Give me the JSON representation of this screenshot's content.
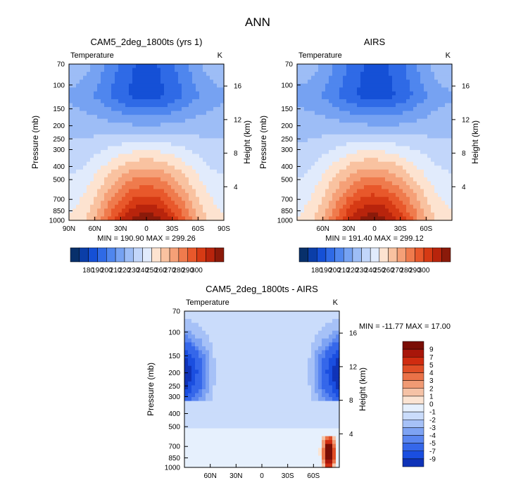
{
  "title": "ANN",
  "units_label": "K",
  "field_label": "Temperature",
  "panels": [
    {
      "id": "model",
      "title": "CAM5_2deg_1800ts (yrs 1)",
      "min_label": "MIN = 190.90",
      "max_label": "MAX = 299.26"
    },
    {
      "id": "obs",
      "title": "AIRS",
      "min_label": "MIN = 191.40",
      "max_label": "MAX = 299.12"
    },
    {
      "id": "diff",
      "title": "CAM5_2deg_1800ts - AIRS",
      "min_label": "MIN = -11.77",
      "max_label": "MAX =  17.00"
    }
  ],
  "colors": {
    "abs_scale": [
      "#08306b",
      "#0b3ea8",
      "#1550d6",
      "#2f6ae6",
      "#4f86ee",
      "#76a2f2",
      "#9dbdf6",
      "#c2d6fa",
      "#e1ebfc",
      "#fde3d0",
      "#f9c2a0",
      "#f5a077",
      "#ef7b4d",
      "#e8582b",
      "#d63a14",
      "#b8240c",
      "#8b1a0a"
    ],
    "diff_scale": [
      "#0a1f7a",
      "#0f33b8",
      "#1a4ee0",
      "#3567ea",
      "#5a86f0",
      "#7ea3f3",
      "#a6c1f7",
      "#cadcfb",
      "#e6f0fd",
      "#fbe4d3",
      "#f5c2a6",
      "#f09a74",
      "#ea7248",
      "#e04e26",
      "#d02c10",
      "#a8160a",
      "#7a0d05"
    ]
  },
  "chart_data": [
    {
      "type": "heatmap",
      "title": "CAM5_2deg_1800ts (yrs 1)",
      "subtitle": "Temperature",
      "xlabel": "",
      "ylabel": "Pressure (mb)",
      "y2label": "Height (km)",
      "x_ticks": [
        "90N",
        "60N",
        "30N",
        "0",
        "30S",
        "60S",
        "90S"
      ],
      "x_range": [
        90,
        -90
      ],
      "y_ticks": [
        70,
        100,
        150,
        200,
        250,
        300,
        400,
        500,
        700,
        850,
        1000
      ],
      "y_range": [
        70,
        1000
      ],
      "y_scale": "log",
      "y2_ticks": [
        4,
        8,
        12,
        16
      ],
      "units": "K",
      "min": 190.9,
      "max": 299.26
    },
    {
      "type": "heatmap",
      "title": "AIRS",
      "subtitle": "Temperature",
      "xlabel": "",
      "ylabel": "Pressure (mb)",
      "y2label": "Height (km)",
      "x_ticks": [
        "60N",
        "30N",
        "0",
        "30S",
        "60S"
      ],
      "x_range": [
        90,
        -90
      ],
      "y_ticks": [
        70,
        100,
        150,
        200,
        250,
        300,
        400,
        500,
        700,
        850,
        1000
      ],
      "y_range": [
        70,
        1000
      ],
      "y_scale": "log",
      "y2_ticks": [
        4,
        8,
        12,
        16
      ],
      "units": "K",
      "min": 191.4,
      "max": 299.12
    },
    {
      "type": "heatmap",
      "title": "CAM5_2deg_1800ts - AIRS",
      "subtitle": "Temperature",
      "xlabel": "",
      "ylabel": "Pressure (mb)",
      "y2label": "Height (km)",
      "x_ticks": [
        "60N",
        "30N",
        "0",
        "30S",
        "60S"
      ],
      "x_range": [
        90,
        -90
      ],
      "y_ticks": [
        70,
        100,
        150,
        200,
        250,
        300,
        400,
        500,
        700,
        850,
        1000
      ],
      "y_range": [
        70,
        1000
      ],
      "y_scale": "log",
      "y2_ticks": [
        4,
        8,
        12,
        16
      ],
      "units": "K",
      "min": -11.77,
      "max": 17.0
    }
  ],
  "colorbar_abs": {
    "labels": [
      "180",
      "190",
      "200",
      "210",
      "220",
      "230",
      "240",
      "250",
      "260",
      "270",
      "280",
      "290",
      "300"
    ]
  },
  "colorbar_diff": {
    "labels": [
      "9",
      "7",
      "5",
      "4",
      "3",
      "2",
      "1",
      "0",
      "-1",
      "-2",
      "-3",
      "-4",
      "-5",
      "-7",
      "-9"
    ]
  }
}
